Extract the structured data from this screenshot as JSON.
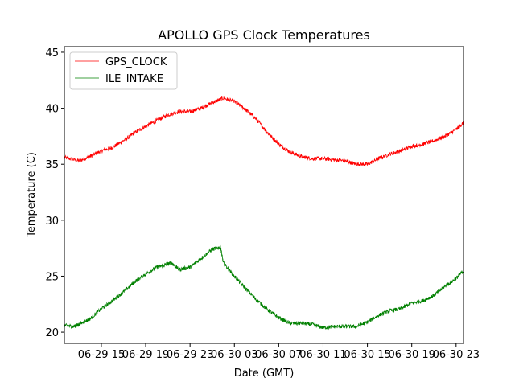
{
  "chart_data": {
    "type": "line",
    "title": "APOLLO GPS Clock Temperatures",
    "xlabel": "Date (GMT)",
    "ylabel": "Temperature (C)",
    "xlim": [
      "06-29 11:40",
      "06-30 23:40"
    ],
    "ylim": [
      19,
      45.5
    ],
    "x_ticks": [
      "06-29 15",
      "06-29 19",
      "06-29 23",
      "06-30 03",
      "06-30 07",
      "06-30 11",
      "06-30 15",
      "06-30 19",
      "06-30 23"
    ],
    "y_ticks": [
      20,
      25,
      30,
      35,
      40,
      45
    ],
    "grid": false,
    "legend_position": "upper left",
    "series": [
      {
        "name": "GPS_CLOCK",
        "color": "#ff0000",
        "x": [
          "06-29 11:40",
          "06-29 13:00",
          "06-29 14:00",
          "06-29 15:00",
          "06-29 16:00",
          "06-29 17:00",
          "06-29 18:00",
          "06-29 19:00",
          "06-29 20:00",
          "06-29 21:00",
          "06-29 22:00",
          "06-29 23:00",
          "06-30 00:00",
          "06-30 01:00",
          "06-30 02:00",
          "06-30 03:00",
          "06-30 04:00",
          "06-30 05:00",
          "06-30 06:00",
          "06-30 07:00",
          "06-30 08:00",
          "06-30 09:00",
          "06-30 10:00",
          "06-30 11:00",
          "06-30 12:00",
          "06-30 13:00",
          "06-30 14:00",
          "06-30 15:00",
          "06-30 16:00",
          "06-30 17:00",
          "06-30 18:00",
          "06-30 19:00",
          "06-30 20:00",
          "06-30 21:00",
          "06-30 22:00",
          "06-30 23:00",
          "06-30 23:40"
        ],
        "values": [
          35.6,
          35.3,
          35.7,
          36.2,
          36.5,
          37.1,
          37.8,
          38.4,
          38.9,
          39.4,
          39.7,
          39.7,
          40.0,
          40.5,
          40.9,
          40.6,
          39.9,
          39.0,
          37.8,
          36.8,
          36.1,
          35.7,
          35.5,
          35.5,
          35.4,
          35.3,
          35.0,
          35.0,
          35.5,
          35.9,
          36.2,
          36.6,
          36.8,
          37.1,
          37.5,
          38.1,
          38.7
        ]
      },
      {
        "name": "ILE_INTAKE",
        "color": "#008000",
        "x": [
          "06-29 11:40",
          "06-29 12:30",
          "06-29 13:00",
          "06-29 14:00",
          "06-29 15:00",
          "06-29 16:00",
          "06-29 17:00",
          "06-29 18:00",
          "06-29 19:00",
          "06-29 20:00",
          "06-29 20:45",
          "06-29 21:20",
          "06-29 22:00",
          "06-29 23:00",
          "06-30 00:00",
          "06-30 01:00",
          "06-30 01:45",
          "06-30 02:00",
          "06-30 03:00",
          "06-30 04:00",
          "06-30 05:00",
          "06-30 06:00",
          "06-30 07:00",
          "06-30 08:00",
          "06-30 09:00",
          "06-30 10:00",
          "06-30 11:00",
          "06-30 12:00",
          "06-30 13:00",
          "06-30 14:00",
          "06-30 15:00",
          "06-30 16:00",
          "06-30 17:00",
          "06-30 18:00",
          "06-30 19:00",
          "06-30 20:00",
          "06-30 21:00",
          "06-30 22:00",
          "06-30 23:00",
          "06-30 23:40"
        ],
        "values": [
          20.6,
          20.5,
          20.7,
          21.2,
          22.1,
          22.8,
          23.6,
          24.5,
          25.2,
          25.8,
          26.0,
          26.2,
          25.6,
          25.8,
          26.6,
          27.4,
          27.6,
          26.2,
          25.0,
          23.9,
          22.9,
          22.0,
          21.3,
          20.8,
          20.8,
          20.7,
          20.4,
          20.5,
          20.5,
          20.5,
          20.9,
          21.5,
          21.9,
          22.1,
          22.6,
          22.8,
          23.3,
          24.1,
          24.8,
          25.5
        ]
      }
    ]
  }
}
